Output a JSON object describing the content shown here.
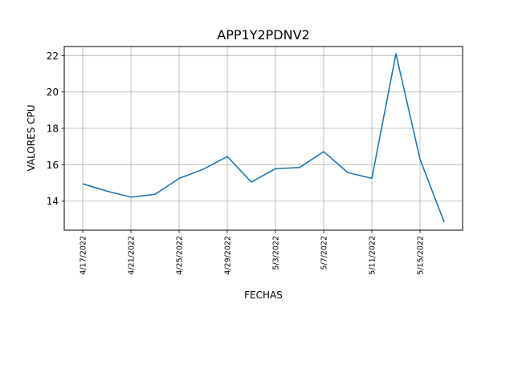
{
  "chart_data": {
    "type": "line",
    "title": "APP1Y2PDNV2",
    "xlabel": "FECHAS",
    "ylabel": "VALORES CPU",
    "x_dates": [
      "4/17/2022",
      "4/19/2022",
      "4/21/2022",
      "4/23/2022",
      "4/25/2022",
      "4/27/2022",
      "4/29/2022",
      "5/1/2022",
      "5/3/2022",
      "5/5/2022",
      "5/7/2022",
      "5/9/2022",
      "5/11/2022",
      "5/13/2022",
      "5/15/2022",
      "5/17/2022"
    ],
    "xticks": [
      "4/17/2022",
      "4/21/2022",
      "4/25/2022",
      "4/29/2022",
      "5/3/2022",
      "5/7/2022",
      "5/11/2022",
      "5/15/2022"
    ],
    "yticks": [
      14,
      16,
      18,
      20,
      22
    ],
    "ylim": [
      12.4,
      22.5
    ],
    "grid": true,
    "line_color": "#1f77b4",
    "series": [
      {
        "values": [
          14.95,
          14.55,
          14.22,
          14.37,
          15.25,
          15.75,
          16.45,
          15.05,
          15.78,
          15.85,
          16.72,
          15.57,
          15.25,
          22.1,
          16.3,
          12.85
        ]
      }
    ]
  }
}
